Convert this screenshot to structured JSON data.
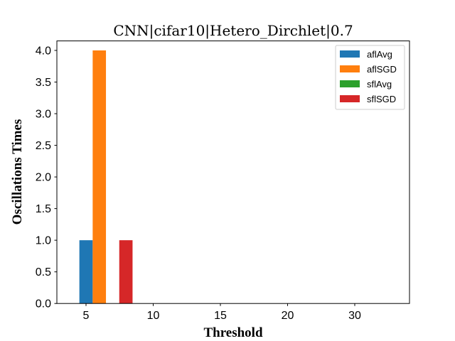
{
  "chart_data": {
    "type": "bar",
    "title": "CNN|cifar10|Hetero_Dirchlet|0.7",
    "xlabel": "Threshold",
    "ylabel": "Oscillations Times",
    "categories": [
      "5",
      "10",
      "15",
      "20",
      "30"
    ],
    "ylim": [
      0,
      4.15
    ],
    "yticks": [
      "0.0",
      "0.5",
      "1.0",
      "1.5",
      "2.0",
      "2.5",
      "3.0",
      "3.5",
      "4.0"
    ],
    "grid": false,
    "legend_position": "top-right",
    "series": [
      {
        "name": "aflAvg",
        "color": "#1f77b4",
        "values": [
          1,
          0,
          0,
          0,
          0
        ]
      },
      {
        "name": "aflSGD",
        "color": "#ff7f0e",
        "values": [
          4,
          0,
          0,
          0,
          0
        ]
      },
      {
        "name": "sflAvg",
        "color": "#2ca02c",
        "values": [
          0,
          0,
          0,
          0,
          0
        ]
      },
      {
        "name": "sflSGD",
        "color": "#d62728",
        "values": [
          1,
          0,
          0,
          0,
          0
        ]
      }
    ]
  }
}
